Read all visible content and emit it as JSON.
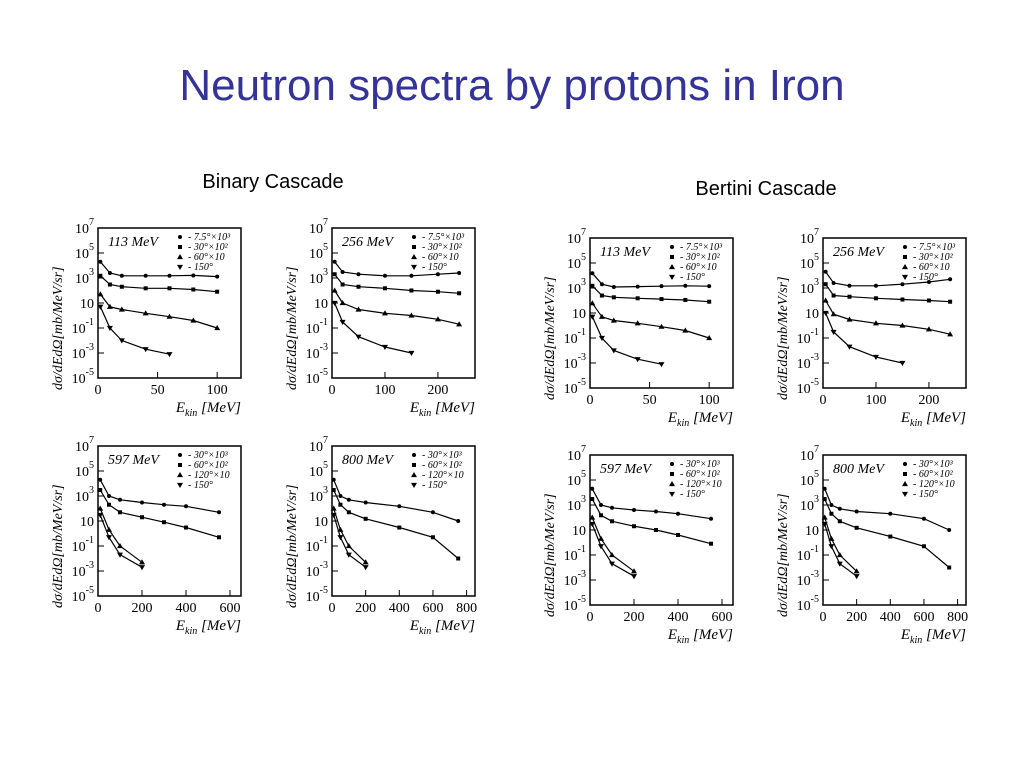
{
  "title": "Neutron spectra by protons in Iron",
  "groups": [
    "Binary Cascade",
    "Bertini Cascade"
  ],
  "chart_data": [
    {
      "type": "scatter",
      "annotation": "113 MeV",
      "ylabel": "dσ/dEdΩ[mb/MeV/sr]",
      "xlabel": "E",
      "xlabel_sub": "kin",
      "xlabel_unit": " [MeV]",
      "log_y": true,
      "x": [
        2,
        10,
        20,
        40,
        60,
        80,
        100
      ],
      "xlim": [
        0,
        120
      ],
      "xticks": [
        0,
        50,
        100
      ],
      "ylim": [
        1e-05,
        10000000
      ],
      "yticks": [
        {
          "value": 10000000,
          "label": "10",
          "sup": "7"
        },
        {
          "value": 100000,
          "label": "10",
          "sup": "5"
        },
        {
          "value": 1000,
          "label": "10",
          "sup": "3"
        },
        10,
        {
          "value": 0.1,
          "label": "10",
          "sup": "-1"
        },
        {
          "value": 0.001,
          "label": "10",
          "sup": "-3"
        },
        {
          "value": 1e-05,
          "label": "10",
          "sup": "-5"
        }
      ],
      "series": [
        {
          "name": "- 7.5°×10³",
          "marker": "circle",
          "color": "#000000",
          "values": [
            20000,
            2500,
            1500,
            1500,
            1500,
            1600,
            1300
          ]
        },
        {
          "name": "- 30°×10²",
          "marker": "square",
          "color": "#000000",
          "values": [
            1500,
            300,
            200,
            150,
            150,
            120,
            80
          ]
        },
        {
          "name": "- 60°×10",
          "marker": "triangle-up",
          "color": "#000000",
          "values": [
            50,
            5,
            3,
            1.5,
            0.8,
            0.4,
            0.1
          ]
        },
        {
          "name": "- 150°",
          "marker": "triangle-down",
          "color": "#000000",
          "values": [
            5,
            0.1,
            0.01,
            0.002,
            0.0008,
            null,
            null
          ]
        }
      ]
    },
    {
      "type": "scatter",
      "annotation": "256 MeV",
      "ylabel": "dσ/dEdΩ[mb/MeV/sr]",
      "xlabel": "E",
      "xlabel_sub": "kin",
      "xlabel_unit": " [MeV]",
      "log_y": true,
      "x": [
        5,
        20,
        50,
        100,
        150,
        200,
        240
      ],
      "xlim": [
        0,
        270
      ],
      "xticks": [
        0,
        100,
        200
      ],
      "ylim": [
        1e-05,
        10000000
      ],
      "yticks": [
        {
          "value": 10000000,
          "label": "10",
          "sup": "7"
        },
        {
          "value": 100000,
          "label": "10",
          "sup": "5"
        },
        {
          "value": 1000,
          "label": "10",
          "sup": "3"
        },
        10,
        {
          "value": 0.1,
          "label": "10",
          "sup": "-1"
        },
        {
          "value": 0.001,
          "label": "10",
          "sup": "-3"
        },
        {
          "value": 1e-05,
          "label": "10",
          "sup": "-5"
        }
      ],
      "series": [
        {
          "name": "- 7.5°×10³",
          "marker": "circle",
          "color": "#000000",
          "values": [
            20000,
            3000,
            2000,
            1500,
            1500,
            2000,
            2500
          ]
        },
        {
          "name": "- 30°×10²",
          "marker": "square",
          "color": "#000000",
          "values": [
            2000,
            300,
            200,
            150,
            100,
            80,
            60
          ]
        },
        {
          "name": "- 60°×10",
          "marker": "triangle-up",
          "color": "#000000",
          "values": [
            100,
            10,
            3,
            1.5,
            1,
            0.5,
            0.2
          ]
        },
        {
          "name": "- 150°",
          "marker": "triangle-down",
          "color": "#000000",
          "values": [
            10,
            0.3,
            0.02,
            0.003,
            0.001,
            null,
            null
          ]
        }
      ]
    },
    {
      "type": "scatter",
      "annotation": "597 MeV",
      "ylabel": "dσ/dEdΩ[mb/MeV/sr]",
      "xlabel": "E",
      "xlabel_sub": "kin",
      "xlabel_unit": " [MeV]",
      "log_y": true,
      "x": [
        10,
        50,
        100,
        200,
        300,
        400,
        550
      ],
      "xlim": [
        0,
        650
      ],
      "xticks": [
        0,
        200,
        400,
        600
      ],
      "ylim": [
        1e-05,
        10000000
      ],
      "yticks": [
        {
          "value": 10000000,
          "label": "10",
          "sup": "7"
        },
        {
          "value": 100000,
          "label": "10",
          "sup": "5"
        },
        {
          "value": 1000,
          "label": "10",
          "sup": "3"
        },
        10,
        {
          "value": 0.1,
          "label": "10",
          "sup": "-1"
        },
        {
          "value": 0.001,
          "label": "10",
          "sup": "-3"
        },
        {
          "value": 1e-05,
          "label": "10",
          "sup": "-5"
        }
      ],
      "series": [
        {
          "name": "- 30°×10³",
          "marker": "circle",
          "color": "#000000",
          "values": [
            20000,
            1000,
            500,
            300,
            200,
            150,
            50
          ]
        },
        {
          "name": "- 60°×10²",
          "marker": "square",
          "color": "#000000",
          "values": [
            3000,
            200,
            50,
            20,
            8,
            3,
            0.5
          ]
        },
        {
          "name": "- 120°×10",
          "marker": "triangle-up",
          "color": "#000000",
          "values": [
            100,
            2,
            0.1,
            0.005,
            null,
            null,
            null
          ]
        },
        {
          "name": "- 150°",
          "marker": "triangle-down",
          "color": "#000000",
          "values": [
            30,
            0.5,
            0.02,
            0.002,
            null,
            null,
            null
          ]
        }
      ]
    },
    {
      "type": "scatter",
      "annotation": "800 MeV",
      "ylabel": "dσ/dEdΩ[mb/MeV/sr]",
      "xlabel": "E",
      "xlabel_sub": "kin",
      "xlabel_unit": " [MeV]",
      "log_y": true,
      "x": [
        10,
        50,
        100,
        200,
        400,
        600,
        750
      ],
      "xlim": [
        0,
        850
      ],
      "xticks": [
        0,
        200,
        400,
        600,
        800
      ],
      "ylim": [
        1e-05,
        10000000
      ],
      "yticks": [
        {
          "value": 10000000,
          "label": "10",
          "sup": "7"
        },
        {
          "value": 100000,
          "label": "10",
          "sup": "5"
        },
        {
          "value": 1000,
          "label": "10",
          "sup": "3"
        },
        10,
        {
          "value": 0.1,
          "label": "10",
          "sup": "-1"
        },
        {
          "value": 0.001,
          "label": "10",
          "sup": "-3"
        },
        {
          "value": 1e-05,
          "label": "10",
          "sup": "-5"
        }
      ],
      "series": [
        {
          "name": "- 30°×10³",
          "marker": "circle",
          "color": "#000000",
          "values": [
            20000,
            1000,
            500,
            300,
            150,
            50,
            10
          ]
        },
        {
          "name": "- 60°×10²",
          "marker": "square",
          "color": "#000000",
          "values": [
            3000,
            200,
            50,
            15,
            3,
            0.5,
            0.01
          ]
        },
        {
          "name": "- 120°×10",
          "marker": "triangle-up",
          "color": "#000000",
          "values": [
            100,
            2,
            0.1,
            0.005,
            null,
            null,
            null
          ]
        },
        {
          "name": "- 150°",
          "marker": "triangle-down",
          "color": "#000000",
          "values": [
            30,
            0.5,
            0.02,
            0.002,
            null,
            null,
            null
          ]
        }
      ]
    },
    {
      "type": "scatter",
      "annotation": "113 MeV",
      "ylabel": "dσ/dEdΩ[mb/MeV/sr]",
      "xlabel": "E",
      "xlabel_sub": "kin",
      "xlabel_unit": " [MeV]",
      "log_y": true,
      "x": [
        2,
        10,
        20,
        40,
        60,
        80,
        100
      ],
      "xlim": [
        0,
        120
      ],
      "xticks": [
        0,
        50,
        100
      ],
      "ylim": [
        1e-05,
        10000000
      ],
      "yticks": [
        {
          "value": 10000000,
          "label": "10",
          "sup": "7"
        },
        {
          "value": 100000,
          "label": "10",
          "sup": "5"
        },
        {
          "value": 1000,
          "label": "10",
          "sup": "3"
        },
        10,
        {
          "value": 0.1,
          "label": "10",
          "sup": "-1"
        },
        {
          "value": 0.001,
          "label": "10",
          "sup": "-3"
        },
        {
          "value": 1e-05,
          "label": "10",
          "sup": "-5"
        }
      ],
      "series": [
        {
          "name": "- 7.5°×10³",
          "marker": "circle",
          "color": "#000000",
          "values": [
            15000,
            2000,
            1200,
            1300,
            1400,
            1500,
            1400
          ]
        },
        {
          "name": "- 30°×10²",
          "marker": "square",
          "color": "#000000",
          "values": [
            1500,
            250,
            180,
            150,
            130,
            110,
            80
          ]
        },
        {
          "name": "- 60°×10",
          "marker": "triangle-up",
          "color": "#000000",
          "values": [
            60,
            5,
            2.5,
            1.5,
            0.8,
            0.4,
            0.1
          ]
        },
        {
          "name": "- 150°",
          "marker": "triangle-down",
          "color": "#000000",
          "values": [
            5,
            0.1,
            0.01,
            0.002,
            0.0008,
            null,
            null
          ]
        }
      ]
    },
    {
      "type": "scatter",
      "annotation": "256 MeV",
      "ylabel": "dσ/dEdΩ[mb/MeV/sr]",
      "xlabel": "E",
      "xlabel_sub": "kin",
      "xlabel_unit": " [MeV]",
      "log_y": true,
      "x": [
        5,
        20,
        50,
        100,
        150,
        200,
        240
      ],
      "xlim": [
        0,
        270
      ],
      "xticks": [
        0,
        100,
        200
      ],
      "ylim": [
        1e-05,
        10000000
      ],
      "yticks": [
        {
          "value": 10000000,
          "label": "10",
          "sup": "7"
        },
        {
          "value": 100000,
          "label": "10",
          "sup": "5"
        },
        {
          "value": 1000,
          "label": "10",
          "sup": "3"
        },
        10,
        {
          "value": 0.1,
          "label": "10",
          "sup": "-1"
        },
        {
          "value": 0.001,
          "label": "10",
          "sup": "-3"
        },
        {
          "value": 1e-05,
          "label": "10",
          "sup": "-5"
        }
      ],
      "series": [
        {
          "name": "- 7.5°×10³",
          "marker": "circle",
          "color": "#000000",
          "values": [
            20000,
            2500,
            1500,
            1500,
            2000,
            3000,
            5000
          ]
        },
        {
          "name": "- 30°×10²",
          "marker": "square",
          "color": "#000000",
          "values": [
            2000,
            250,
            200,
            150,
            120,
            100,
            80
          ]
        },
        {
          "name": "- 60°×10",
          "marker": "triangle-up",
          "color": "#000000",
          "values": [
            100,
            8,
            3,
            1.5,
            1,
            0.5,
            0.2
          ]
        },
        {
          "name": "- 150°",
          "marker": "triangle-down",
          "color": "#000000",
          "values": [
            10,
            0.3,
            0.02,
            0.003,
            0.001,
            null,
            null
          ]
        }
      ]
    },
    {
      "type": "scatter",
      "annotation": "597 MeV",
      "ylabel": "dσ/dEdΩ[mb/MeV/sr]",
      "xlabel": "E",
      "xlabel_sub": "kin",
      "xlabel_unit": " [MeV]",
      "log_y": true,
      "x": [
        10,
        50,
        100,
        200,
        300,
        400,
        550
      ],
      "xlim": [
        0,
        650
      ],
      "xticks": [
        0,
        200,
        400,
        600
      ],
      "ylim": [
        1e-05,
        10000000
      ],
      "yticks": [
        {
          "value": 10000000,
          "label": "10",
          "sup": "7"
        },
        {
          "value": 100000,
          "label": "10",
          "sup": "5"
        },
        {
          "value": 1000,
          "label": "10",
          "sup": "3"
        },
        10,
        {
          "value": 0.1,
          "label": "10",
          "sup": "-1"
        },
        {
          "value": 0.001,
          "label": "10",
          "sup": "-3"
        },
        {
          "value": 1e-05,
          "label": "10",
          "sup": "-5"
        }
      ],
      "series": [
        {
          "name": "- 30°×10³",
          "marker": "circle",
          "color": "#000000",
          "values": [
            20000,
            1000,
            600,
            400,
            300,
            200,
            80
          ]
        },
        {
          "name": "- 60°×10²",
          "marker": "square",
          "color": "#000000",
          "values": [
            3000,
            150,
            50,
            20,
            10,
            4,
            0.8
          ]
        },
        {
          "name": "- 120°×10",
          "marker": "triangle-up",
          "color": "#000000",
          "values": [
            100,
            2,
            0.1,
            0.005,
            null,
            null,
            null
          ]
        },
        {
          "name": "- 150°",
          "marker": "triangle-down",
          "color": "#000000",
          "values": [
            30,
            0.5,
            0.02,
            0.002,
            null,
            null,
            null
          ]
        }
      ]
    },
    {
      "type": "scatter",
      "annotation": "800 MeV",
      "ylabel": "dσ/dEdΩ[mb/MeV/sr]",
      "xlabel": "E",
      "xlabel_sub": "kin",
      "xlabel_unit": " [MeV]",
      "log_y": true,
      "x": [
        10,
        50,
        100,
        200,
        400,
        600,
        750
      ],
      "xlim": [
        0,
        850
      ],
      "xticks": [
        0,
        200,
        400,
        600,
        800
      ],
      "ylim": [
        1e-05,
        10000000
      ],
      "yticks": [
        {
          "value": 10000000,
          "label": "10",
          "sup": "7"
        },
        {
          "value": 100000,
          "label": "10",
          "sup": "5"
        },
        {
          "value": 1000,
          "label": "10",
          "sup": "3"
        },
        10,
        {
          "value": 0.1,
          "label": "10",
          "sup": "-1"
        },
        {
          "value": 0.001,
          "label": "10",
          "sup": "-3"
        },
        {
          "value": 1e-05,
          "label": "10",
          "sup": "-5"
        }
      ],
      "series": [
        {
          "name": "- 30°×10³",
          "marker": "circle",
          "color": "#000000",
          "values": [
            20000,
            1000,
            500,
            300,
            200,
            80,
            10
          ]
        },
        {
          "name": "- 60°×10²",
          "marker": "square",
          "color": "#000000",
          "values": [
            3000,
            200,
            50,
            15,
            3,
            0.5,
            0.01
          ]
        },
        {
          "name": "- 120°×10",
          "marker": "triangle-up",
          "color": "#000000",
          "values": [
            100,
            2,
            0.1,
            0.005,
            null,
            null,
            null
          ]
        },
        {
          "name": "- 150°",
          "marker": "triangle-down",
          "color": "#000000",
          "values": [
            30,
            0.5,
            0.02,
            0.002,
            null,
            null,
            null
          ]
        }
      ]
    }
  ]
}
